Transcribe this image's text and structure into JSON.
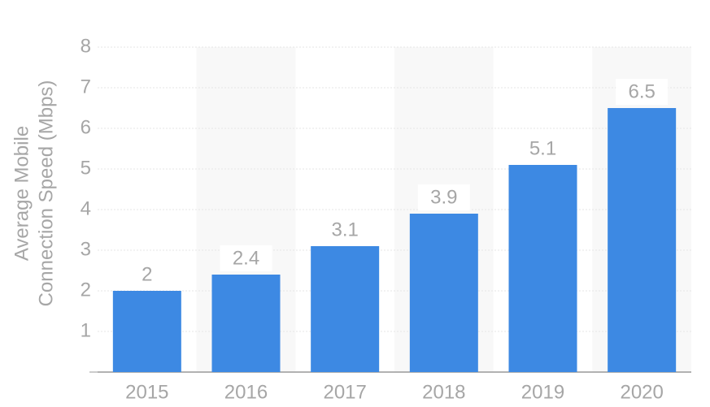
{
  "chart_data": {
    "type": "bar",
    "y_label": [
      "Average Mobile",
      "Connection Speed (Mbps)"
    ],
    "categories": [
      "2015",
      "2016",
      "2017",
      "2018",
      "2019",
      "2020"
    ],
    "values": [
      2,
      2.4,
      3.1,
      3.9,
      5.1,
      6.5
    ],
    "color": "#3d89e3",
    "ylim": [
      0,
      8
    ],
    "yticks": [
      1,
      2,
      3,
      4,
      5,
      6,
      7,
      8
    ],
    "grid": true
  }
}
